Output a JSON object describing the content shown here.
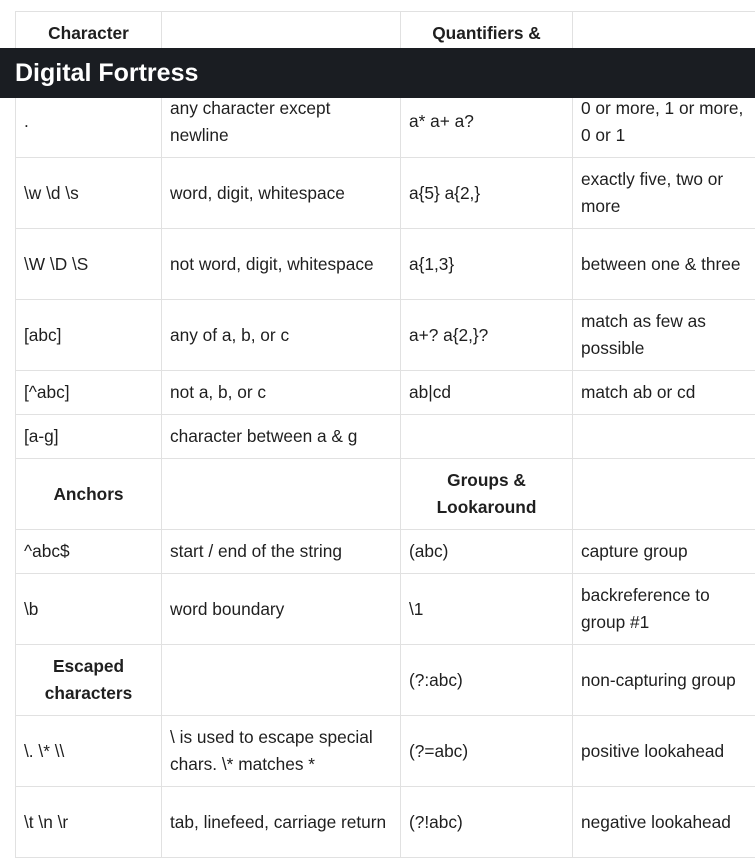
{
  "app_title": "Digital Fortress",
  "section_headers": {
    "character_classes": "Character",
    "quantifiers": "Quantifiers &",
    "anchors": "Anchors",
    "groups": "Groups & Lookaround",
    "escaped": "Escaped characters"
  },
  "character_rows": [
    {
      "pattern": ".",
      "description": "any character except newline",
      "q_pattern": "a* a+ a?",
      "q_description": "0 or more, 1 or more, 0 or 1"
    },
    {
      "pattern": "\\w \\d \\s",
      "description": "word, digit, whitespace",
      "q_pattern": "a{5} a{2,}",
      "q_description": "exactly five, two or more"
    },
    {
      "pattern": "\\W \\D \\S",
      "description": "not word, digit, whitespace",
      "q_pattern": "a{1,3}",
      "q_description": "between one & three"
    },
    {
      "pattern": "[abc]",
      "description": "any of a, b, or c",
      "q_pattern": "a+? a{2,}?",
      "q_description": "match as few as possible"
    },
    {
      "pattern": "[^abc]",
      "description": "not a, b, or c",
      "q_pattern": "ab|cd",
      "q_description": "match ab or cd"
    },
    {
      "pattern": "[a-g]",
      "description": "character between a & g",
      "q_pattern": "",
      "q_description": ""
    }
  ],
  "anchor_rows": [
    {
      "pattern": "^abc$",
      "description": "start / end of the string",
      "g_pattern": "(abc)",
      "g_description": "capture group"
    },
    {
      "pattern": "\\b",
      "description": "word boundary",
      "g_pattern": "\\1",
      "g_description": "backreference to group #1"
    }
  ],
  "escaped_header_row": {
    "g_pattern": "(?:abc)",
    "g_description": "non-capturing group"
  },
  "escaped_rows": [
    {
      "pattern": "\\. \\* \\\\",
      "description": "\\ is used to escape special chars. \\* matches *",
      "g_pattern": "(?=abc)",
      "g_description": "positive lookahead"
    },
    {
      "pattern": "\\t \\n \\r",
      "description": "tab, linefeed, carriage return",
      "g_pattern": "(?!abc)",
      "g_description": "negative lookahead"
    }
  ]
}
